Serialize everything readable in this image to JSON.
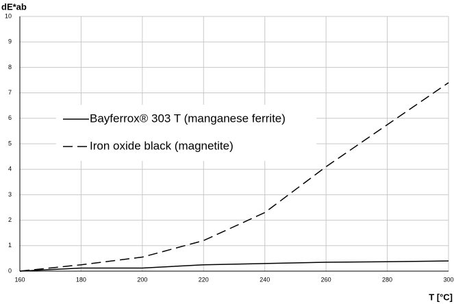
{
  "chart_data": {
    "type": "line",
    "y_label": "dE*ab",
    "x_label": "T [°C]",
    "x": [
      160,
      180,
      200,
      220,
      240,
      260,
      280,
      300
    ],
    "series": [
      {
        "name": "Bayferrox® 303 T (manganese ferrite)",
        "color": "#000000",
        "line_style": "solid",
        "values": [
          0,
          0.12,
          0.12,
          0.25,
          0.3,
          0.35,
          0.37,
          0.4
        ]
      },
      {
        "name": "Iron oxide black (magnetite)",
        "color": "#000000",
        "line_style": "dashed",
        "values": [
          0,
          0.25,
          0.55,
          1.2,
          2.3,
          4.1,
          5.75,
          7.4
        ]
      }
    ],
    "xlim": [
      160,
      300
    ],
    "xticks": [
      160,
      180,
      200,
      220,
      240,
      260,
      280,
      300
    ],
    "ylim": [
      0,
      10
    ],
    "yticks": [
      0,
      1,
      2,
      3,
      4,
      5,
      6,
      7,
      8,
      9,
      10
    ],
    "grid": true
  }
}
